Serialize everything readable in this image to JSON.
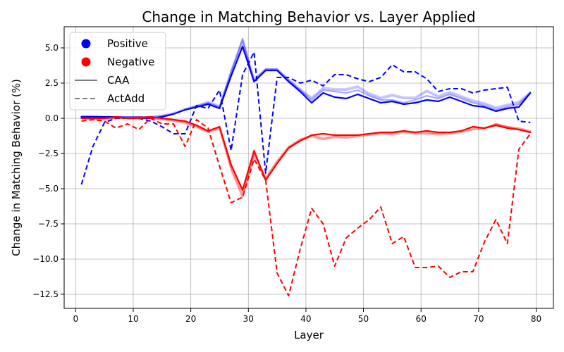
{
  "chart_data": {
    "type": "line",
    "title": "Change in Matching Behavior vs. Layer Applied",
    "xlabel": "Layer",
    "ylabel": "Change in Matching Behavior (%)",
    "xlim": [
      -2,
      83
    ],
    "ylim": [
      -13.5,
      6.5
    ],
    "xticks": [
      0,
      10,
      20,
      30,
      40,
      50,
      60,
      70,
      80
    ],
    "yticks": [
      -12.5,
      -10.0,
      -7.5,
      -5.0,
      -2.5,
      0.0,
      2.5,
      5.0
    ],
    "ytick_labels": [
      "−12.5",
      "−10.0",
      "−7.5",
      "−5.0",
      "−2.5",
      "0.0",
      "2.5",
      "5.0"
    ],
    "grid": true,
    "legend": {
      "position": "top-left",
      "entries": [
        {
          "label": "Positive",
          "kind": "marker",
          "color": "#0000ff"
        },
        {
          "label": "Negative",
          "kind": "marker",
          "color": "#ff0000"
        },
        {
          "label": "CAA",
          "kind": "solid",
          "color": "#808080"
        },
        {
          "label": "ActAdd",
          "kind": "dashed",
          "color": "#808080"
        }
      ]
    },
    "x": [
      1,
      3,
      5,
      7,
      9,
      11,
      13,
      15,
      17,
      19,
      21,
      23,
      25,
      27,
      29,
      31,
      33,
      35,
      37,
      39,
      41,
      43,
      45,
      47,
      49,
      51,
      53,
      55,
      57,
      59,
      61,
      63,
      65,
      67,
      69,
      71,
      73,
      75,
      77,
      79
    ],
    "series": [
      {
        "name": "Positive CAA (main)",
        "color": "#0000ff",
        "style": "solid",
        "alpha": 1.0,
        "values": [
          0.1,
          0.1,
          0.1,
          0.1,
          0.0,
          0.0,
          0.0,
          0.1,
          0.3,
          0.6,
          0.8,
          1.0,
          0.7,
          3.0,
          5.1,
          2.6,
          3.4,
          3.4,
          2.6,
          1.9,
          1.1,
          1.8,
          1.5,
          1.4,
          1.7,
          1.4,
          1.1,
          1.2,
          1.0,
          1.1,
          1.3,
          1.2,
          1.5,
          1.2,
          0.9,
          0.8,
          0.5,
          0.7,
          0.8,
          1.8
        ]
      },
      {
        "name": "Positive CAA (var 1)",
        "color": "#0000ff",
        "style": "solid",
        "alpha": 0.35,
        "values": [
          0.1,
          0.1,
          0.1,
          0.1,
          0.1,
          0.1,
          0.0,
          0.1,
          0.3,
          0.6,
          0.8,
          1.1,
          0.8,
          3.3,
          5.6,
          2.7,
          3.5,
          3.5,
          2.7,
          2.0,
          1.3,
          2.0,
          1.9,
          1.8,
          2.0,
          1.6,
          1.3,
          1.3,
          1.1,
          1.3,
          1.6,
          1.4,
          1.7,
          1.4,
          1.1,
          0.9,
          0.6,
          0.8,
          1.0,
          1.8
        ]
      },
      {
        "name": "Positive CAA (var 2)",
        "color": "#0000ff",
        "style": "solid",
        "alpha": 0.25,
        "values": [
          0.1,
          0.1,
          0.1,
          0.1,
          0.1,
          0.1,
          0.1,
          0.2,
          0.3,
          0.6,
          0.9,
          1.1,
          0.8,
          3.2,
          5.4,
          2.6,
          3.4,
          3.4,
          2.7,
          2.0,
          1.4,
          2.1,
          2.0,
          2.0,
          2.2,
          1.7,
          1.4,
          1.6,
          1.4,
          1.4,
          1.9,
          1.5,
          1.8,
          1.5,
          1.2,
          1.0,
          0.7,
          0.9,
          1.1,
          1.8
        ]
      },
      {
        "name": "Positive CAA (var 3)",
        "color": "#0000ff",
        "style": "solid",
        "alpha": 0.2,
        "values": [
          0.2,
          0.2,
          0.1,
          0.1,
          0.1,
          0.1,
          0.1,
          0.2,
          0.4,
          0.7,
          0.9,
          1.2,
          0.9,
          3.4,
          5.7,
          2.8,
          3.5,
          3.5,
          2.8,
          2.1,
          1.5,
          2.2,
          2.1,
          2.1,
          2.3,
          1.8,
          1.5,
          1.7,
          1.5,
          1.5,
          2.0,
          1.6,
          1.9,
          1.6,
          1.3,
          1.1,
          0.8,
          1.0,
          1.2,
          1.9
        ]
      },
      {
        "name": "Positive ActAdd",
        "color": "#0000ff",
        "style": "dashed",
        "alpha": 1.0,
        "values": [
          -4.7,
          -2.0,
          -0.3,
          0.0,
          0.0,
          0.0,
          -0.2,
          -0.6,
          -1.1,
          -1.1,
          0.9,
          0.7,
          2.0,
          -2.3,
          3.1,
          4.7,
          -3.9,
          2.9,
          2.9,
          2.5,
          2.7,
          2.3,
          3.1,
          3.1,
          2.8,
          2.6,
          2.9,
          3.8,
          3.3,
          3.3,
          2.8,
          1.9,
          2.1,
          2.1,
          1.8,
          2.0,
          2.1,
          2.2,
          -0.2,
          -0.3
        ]
      },
      {
        "name": "Negative CAA (main)",
        "color": "#ff0000",
        "style": "solid",
        "alpha": 1.0,
        "values": [
          0.0,
          0.0,
          0.0,
          0.1,
          0.0,
          0.0,
          0.1,
          0.0,
          -0.1,
          -0.2,
          -0.5,
          -0.9,
          -0.6,
          -3.3,
          -5.1,
          -2.3,
          -4.4,
          -3.2,
          -2.1,
          -1.6,
          -1.2,
          -1.1,
          -1.2,
          -1.2,
          -1.2,
          -1.1,
          -1.0,
          -1.0,
          -0.9,
          -1.0,
          -0.9,
          -1.0,
          -1.0,
          -0.9,
          -0.6,
          -0.7,
          -0.5,
          -0.7,
          -0.8,
          -1.0
        ]
      },
      {
        "name": "Negative CAA (var 1)",
        "color": "#ff0000",
        "style": "solid",
        "alpha": 0.35,
        "values": [
          0.0,
          0.0,
          0.0,
          0.0,
          0.0,
          0.1,
          0.1,
          0.0,
          -0.1,
          -0.3,
          -0.6,
          -0.9,
          -0.7,
          -3.5,
          -5.4,
          -2.5,
          -4.2,
          -3.0,
          -2.0,
          -1.5,
          -1.2,
          -1.4,
          -1.3,
          -1.3,
          -1.2,
          -1.1,
          -1.0,
          -1.1,
          -0.9,
          -1.0,
          -1.0,
          -1.1,
          -1.0,
          -0.9,
          -0.7,
          -0.7,
          -0.4,
          -0.6,
          -0.8,
          -1.0
        ]
      },
      {
        "name": "Negative CAA (var 2)",
        "color": "#ff0000",
        "style": "solid",
        "alpha": 0.25,
        "values": [
          0.0,
          -0.1,
          0.0,
          0.0,
          0.0,
          0.0,
          0.0,
          -0.1,
          -0.2,
          -0.3,
          -0.6,
          -1.0,
          -0.7,
          -3.6,
          -5.6,
          -2.6,
          -4.3,
          -3.1,
          -2.1,
          -1.5,
          -1.3,
          -1.5,
          -1.3,
          -1.4,
          -1.3,
          -1.2,
          -1.1,
          -1.1,
          -1.0,
          -1.1,
          -1.1,
          -1.1,
          -1.1,
          -1.0,
          -0.8,
          -0.7,
          -0.4,
          -0.6,
          -0.7,
          -0.9
        ]
      },
      {
        "name": "Negative CAA (var 3)",
        "color": "#ff0000",
        "style": "solid",
        "alpha": 0.2,
        "values": [
          0.0,
          -0.1,
          -0.1,
          0.0,
          0.0,
          0.0,
          0.0,
          -0.1,
          -0.2,
          -0.4,
          -0.7,
          -1.0,
          -0.8,
          -3.7,
          -5.7,
          -2.7,
          -4.4,
          -3.2,
          -2.2,
          -1.6,
          -1.3,
          -1.5,
          -1.4,
          -1.4,
          -1.3,
          -1.2,
          -1.1,
          -1.2,
          -1.0,
          -1.1,
          -1.1,
          -1.2,
          -1.1,
          -1.0,
          -0.8,
          -0.8,
          -0.4,
          -0.6,
          -0.7,
          -0.9
        ]
      },
      {
        "name": "Negative ActAdd",
        "color": "#ff0000",
        "style": "dashed",
        "alpha": 1.0,
        "values": [
          -0.2,
          -0.1,
          -0.2,
          -0.7,
          -0.4,
          -0.8,
          0.0,
          -0.4,
          -0.4,
          -2.0,
          -0.1,
          -0.7,
          -3.4,
          -6.0,
          -5.6,
          -2.9,
          -4.4,
          -11.0,
          -12.6,
          -9.3,
          -6.4,
          -7.5,
          -10.5,
          -8.5,
          -7.8,
          -7.2,
          -6.3,
          -8.9,
          -8.4,
          -10.6,
          -10.6,
          -10.5,
          -11.3,
          -10.9,
          -10.9,
          -8.8,
          -7.2,
          -8.9,
          -2.2,
          -1.1
        ]
      }
    ]
  }
}
